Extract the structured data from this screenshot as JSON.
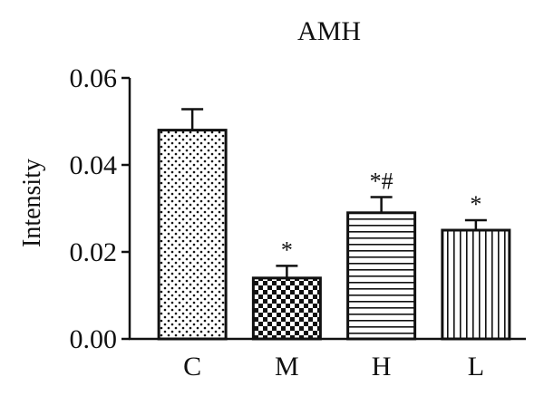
{
  "chart_data": {
    "type": "bar",
    "title": "AMH",
    "xlabel": "",
    "ylabel": "Intensity",
    "ylim": [
      0,
      0.06
    ],
    "yticks": [
      "0.00",
      "0.02",
      "0.04",
      "0.06"
    ],
    "categories": [
      "C",
      "M",
      "H",
      "L"
    ],
    "values": [
      0.048,
      0.014,
      0.029,
      0.025
    ],
    "errors": [
      0.0048,
      0.0028,
      0.0036,
      0.0023
    ],
    "annotations": [
      "",
      "*",
      "*#",
      "*"
    ],
    "patterns": [
      "dots",
      "checkerboard",
      "horizontal-lines",
      "vertical-lines"
    ],
    "bar_color": "#111111",
    "grid": false
  }
}
